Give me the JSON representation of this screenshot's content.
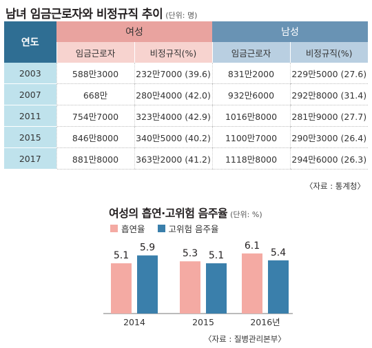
{
  "title": "남녀 임금근로자와 비정규직 추이",
  "unit": "(단위: 명)",
  "table": {
    "year_header": "연도",
    "female_header": "여성",
    "male_header": "남성",
    "sub_headers": [
      "임금근로자",
      "비정규직(%)",
      "임금근로자",
      "비정규직(%)"
    ],
    "rows": [
      {
        "year": "2003",
        "f_wage": "588만3000",
        "f_irr": "232만7000 (39.6)",
        "m_wage": "831만2000",
        "m_irr": "229만5000 (27.6)"
      },
      {
        "year": "2007",
        "f_wage": "668만",
        "f_irr": "280만4000 (42.0)",
        "m_wage": "932만6000",
        "m_irr": "292만8000 (31.4)"
      },
      {
        "year": "2011",
        "f_wage": "754만7000",
        "f_irr": "323만4000 (42.9)",
        "m_wage": "1016만8000",
        "m_irr": "281만9000 (27.7)"
      },
      {
        "year": "2015",
        "f_wage": "846만8000",
        "f_irr": "340만5000 (40.2)",
        "m_wage": "1100만7000",
        "m_irr": "290만3000 (26.4)"
      },
      {
        "year": "2017",
        "f_wage": "881만8000",
        "f_irr": "363만2000 (41.2)",
        "m_wage": "1118만8000",
        "m_irr": "294만6000 (26.3)"
      }
    ]
  },
  "source1": "〈자료 : 통계청〉",
  "chart_title": "여성의 흡연·고위험 음주율",
  "chart_unit": "(단위: %)",
  "source2": "〈자료 : 질병관리본부〉",
  "colors": {
    "smoking": "#f4aaa3",
    "drinking": "#3a7fab"
  },
  "chart_data": {
    "type": "bar",
    "title": "여성의 흡연·고위험 음주율",
    "unit": "%",
    "categories": [
      "2014",
      "2015",
      "2016년"
    ],
    "series": [
      {
        "name": "흡연율",
        "values": [
          5.1,
          5.3,
          6.1
        ]
      },
      {
        "name": "고위험 음주율",
        "values": [
          5.9,
          5.1,
          5.4
        ]
      }
    ],
    "ylim": [
      0,
      7
    ],
    "grid": false,
    "legend": "top-left"
  }
}
